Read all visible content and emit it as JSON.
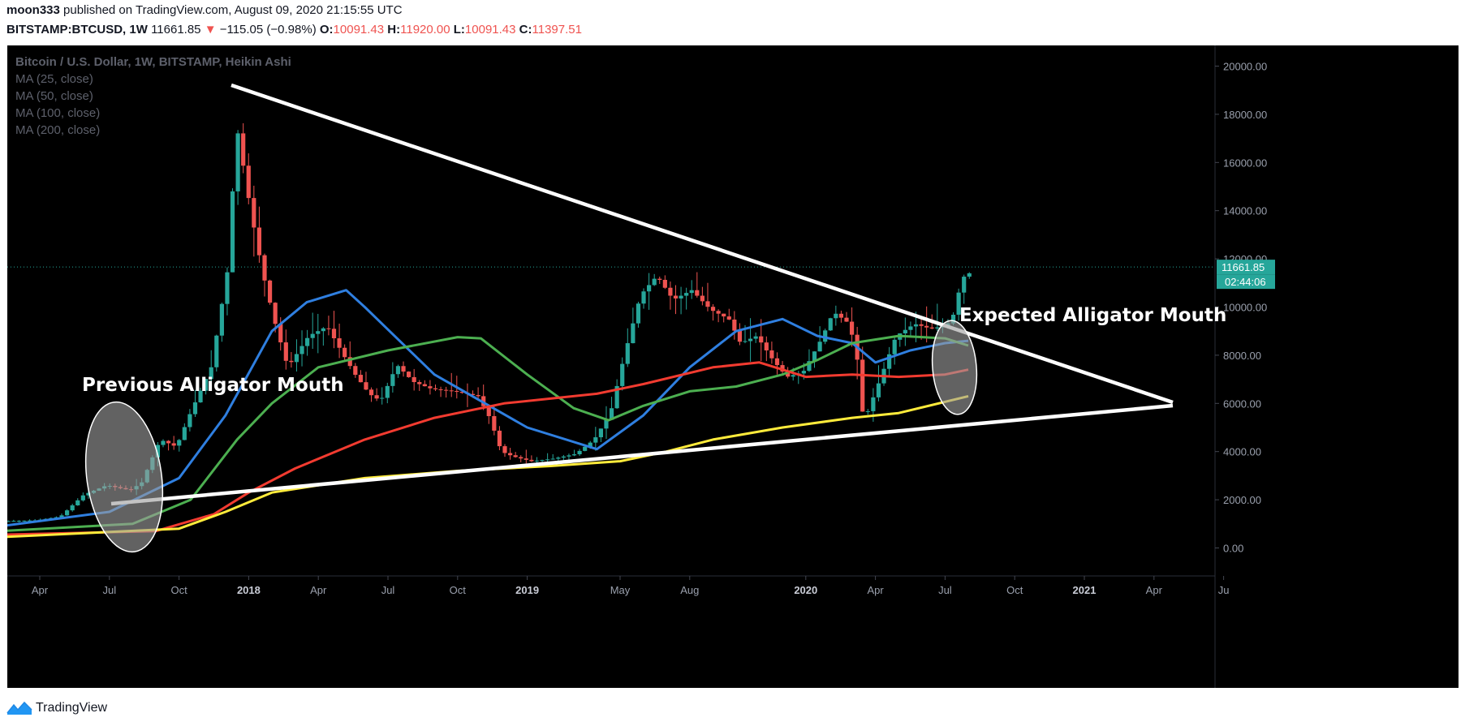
{
  "header": {
    "author": "moon333",
    "published_text": "published on TradingView.com, August 09, 2020 21:15:55 UTC",
    "symbol": "BITSTAMP:BTCUSD, 1W",
    "last": "11661.85",
    "change_arrow": "▼",
    "change": "−115.05 (−0.98%)",
    "o_label": "O:",
    "o_value": "10091.43",
    "h_label": "H:",
    "h_value": "11920.00",
    "l_label": "L:",
    "l_value": "10091.43",
    "c_label": "C:",
    "c_value": "11397.51"
  },
  "legend": {
    "title": "Bitcoin / U.S. Dollar, 1W, BITSTAMP, Heikin Ashi",
    "ma1": "MA (25, close)",
    "ma2": "MA (50, close)",
    "ma3": "MA (100, close)",
    "ma4": "MA (200, close)"
  },
  "footer": {
    "brand": "TradingView"
  },
  "colors": {
    "up": "#26a69a",
    "down": "#ef5350",
    "ma25": "#2f7fe0",
    "ma50": "#4caf50",
    "ma100": "#f23b30",
    "ma200": "#ffeb3b",
    "price_tag": "#26a69a"
  },
  "chart_data": {
    "type": "candlestick",
    "title": "Bitcoin / U.S. Dollar, 1W, BITSTAMP, Heikin Ashi",
    "ylim": [
      -1000,
      21000
    ],
    "y_ticks": [
      "0.00",
      "2000.00",
      "4000.00",
      "6000.00",
      "8000.00",
      "10000.00",
      "12000.00",
      "14000.00",
      "16000.00",
      "18000.00",
      "20000.00"
    ],
    "x_ticks": [
      {
        "label": "Apr",
        "month": 3.0,
        "bold": false
      },
      {
        "label": "Jul",
        "month": 6.0,
        "bold": false
      },
      {
        "label": "Oct",
        "month": 9.0,
        "bold": false
      },
      {
        "label": "2018",
        "month": 12.0,
        "bold": true
      },
      {
        "label": "Apr",
        "month": 15.0,
        "bold": false
      },
      {
        "label": "Jul",
        "month": 18.0,
        "bold": false
      },
      {
        "label": "Oct",
        "month": 21.0,
        "bold": false
      },
      {
        "label": "2019",
        "month": 24.0,
        "bold": true
      },
      {
        "label": "May",
        "month": 28.0,
        "bold": false
      },
      {
        "label": "Aug",
        "month": 31.0,
        "bold": false
      },
      {
        "label": "2020",
        "month": 36.0,
        "bold": true
      },
      {
        "label": "Apr",
        "month": 39.0,
        "bold": false
      },
      {
        "label": "Jul",
        "month": 42.0,
        "bold": false
      },
      {
        "label": "Oct",
        "month": 45.0,
        "bold": false
      },
      {
        "label": "2021",
        "month": 48.0,
        "bold": true
      },
      {
        "label": "Apr",
        "month": 51.0,
        "bold": false
      },
      {
        "label": "Ju",
        "month": 54.0,
        "bold": false
      }
    ],
    "x_units": "months since Jan 2017",
    "xlim": [
      1.3,
      54.0
    ],
    "price_path": [
      [
        1.3,
        1100
      ],
      [
        3,
        1150
      ],
      [
        4,
        1300
      ],
      [
        5,
        2200
      ],
      [
        6,
        2600
      ],
      [
        7,
        2400
      ],
      [
        7.5,
        2700
      ],
      [
        8.3,
        4500
      ],
      [
        9,
        4200
      ],
      [
        9.6,
        5600
      ],
      [
        10.5,
        7500
      ],
      [
        11.2,
        11500
      ],
      [
        11.6,
        17500
      ],
      [
        12.2,
        14000
      ],
      [
        12.7,
        11500
      ],
      [
        13.2,
        9500
      ],
      [
        13.8,
        7500
      ],
      [
        14.7,
        8800
      ],
      [
        15.5,
        9200
      ],
      [
        16.2,
        8000
      ],
      [
        16.7,
        7200
      ],
      [
        17.3,
        6400
      ],
      [
        17.8,
        6100
      ],
      [
        18.5,
        7600
      ],
      [
        19.2,
        6900
      ],
      [
        20.0,
        6600
      ],
      [
        21.0,
        6500
      ],
      [
        22.0,
        6300
      ],
      [
        22.5,
        5400
      ],
      [
        23.0,
        4000
      ],
      [
        23.5,
        3800
      ],
      [
        24.3,
        3600
      ],
      [
        25.2,
        3700
      ],
      [
        26.2,
        3900
      ],
      [
        27.0,
        4500
      ],
      [
        27.7,
        5600
      ],
      [
        28.3,
        8000
      ],
      [
        29.0,
        10500
      ],
      [
        29.7,
        11300
      ],
      [
        30.4,
        10300
      ],
      [
        31.2,
        10700
      ],
      [
        32.0,
        9900
      ],
      [
        32.8,
        9500
      ],
      [
        33.3,
        8500
      ],
      [
        34.0,
        8800
      ],
      [
        34.7,
        7800
      ],
      [
        35.3,
        7100
      ],
      [
        36.0,
        7300
      ],
      [
        36.8,
        8700
      ],
      [
        37.3,
        9800
      ],
      [
        38.0,
        9300
      ],
      [
        38.4,
        7500
      ],
      [
        38.6,
        5200
      ],
      [
        39.2,
        6700
      ],
      [
        40.0,
        8800
      ],
      [
        40.8,
        9300
      ],
      [
        41.5,
        9100
      ],
      [
        42.0,
        9200
      ],
      [
        42.4,
        9400
      ],
      [
        42.8,
        11000
      ],
      [
        43.0,
        11400
      ]
    ],
    "series": [
      {
        "name": "MA (25, close)",
        "color_key": "ma25",
        "points": [
          [
            1.3,
            900
          ],
          [
            6,
            1500
          ],
          [
            9,
            2900
          ],
          [
            11,
            5500
          ],
          [
            13,
            9000
          ],
          [
            14.5,
            10200
          ],
          [
            16.2,
            10700
          ],
          [
            17,
            10000
          ],
          [
            20,
            7200
          ],
          [
            24,
            5000
          ],
          [
            27,
            4100
          ],
          [
            29,
            5500
          ],
          [
            31,
            7500
          ],
          [
            33,
            9000
          ],
          [
            35,
            9500
          ],
          [
            36.5,
            8800
          ],
          [
            38,
            8500
          ],
          [
            39,
            7700
          ],
          [
            40.5,
            8200
          ],
          [
            42,
            8500
          ],
          [
            43,
            8600
          ]
        ]
      },
      {
        "name": "MA (50, close)",
        "color_key": "ma50",
        "points": [
          [
            1.3,
            700
          ],
          [
            7,
            1000
          ],
          [
            9.5,
            2000
          ],
          [
            11.5,
            4500
          ],
          [
            13,
            6000
          ],
          [
            15,
            7500
          ],
          [
            18,
            8200
          ],
          [
            21,
            8750
          ],
          [
            22,
            8700
          ],
          [
            24,
            7200
          ],
          [
            26,
            5800
          ],
          [
            27.5,
            5300
          ],
          [
            29,
            5900
          ],
          [
            31,
            6500
          ],
          [
            33,
            6700
          ],
          [
            35,
            7200
          ],
          [
            36.5,
            7800
          ],
          [
            38,
            8500
          ],
          [
            40,
            8800
          ],
          [
            42,
            8700
          ],
          [
            43,
            8400
          ]
        ]
      },
      {
        "name": "MA (100, close)",
        "color_key": "ma100",
        "points": [
          [
            1.3,
            550
          ],
          [
            8,
            700
          ],
          [
            10.5,
            1400
          ],
          [
            12,
            2300
          ],
          [
            14,
            3300
          ],
          [
            17,
            4500
          ],
          [
            20,
            5400
          ],
          [
            23,
            6000
          ],
          [
            27,
            6400
          ],
          [
            29,
            6800
          ],
          [
            32,
            7500
          ],
          [
            34,
            7700
          ],
          [
            36,
            7100
          ],
          [
            38,
            7200
          ],
          [
            40,
            7100
          ],
          [
            42,
            7200
          ],
          [
            43,
            7400
          ]
        ]
      },
      {
        "name": "MA (200, close)",
        "color_key": "ma200",
        "points": [
          [
            1.3,
            450
          ],
          [
            9,
            800
          ],
          [
            11,
            1500
          ],
          [
            13,
            2300
          ],
          [
            17,
            2900
          ],
          [
            21,
            3200
          ],
          [
            25,
            3400
          ],
          [
            28,
            3600
          ],
          [
            30,
            4000
          ],
          [
            32,
            4500
          ],
          [
            35,
            5000
          ],
          [
            38,
            5400
          ],
          [
            40,
            5600
          ],
          [
            43,
            6300
          ]
        ]
      }
    ],
    "annotations": {
      "prev_label": "Previous Alligator Mouth",
      "expected_label": "Expected Alligator Mouth"
    },
    "price_tag": {
      "value": 11661.85,
      "label": "11661.85",
      "timer": "02:44:06"
    }
  }
}
